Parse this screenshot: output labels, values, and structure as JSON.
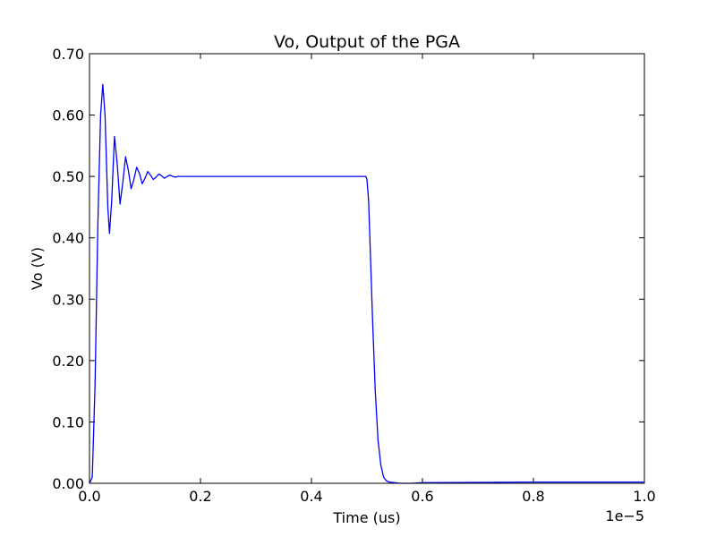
{
  "chart_data": {
    "type": "line",
    "title": "Vo, Output of the PGA",
    "xlabel": "Time (us)",
    "ylabel": "Vo (V)",
    "x_offset_text": "1e−5",
    "xlim": [
      0.0,
      1.0
    ],
    "ylim": [
      0.0,
      0.7
    ],
    "x_ticks": [
      {
        "value": 0.0,
        "label": "0.0"
      },
      {
        "value": 0.2,
        "label": "0.2"
      },
      {
        "value": 0.4,
        "label": "0.4"
      },
      {
        "value": 0.6,
        "label": "0.6"
      },
      {
        "value": 0.8,
        "label": "0.8"
      },
      {
        "value": 1.0,
        "label": "1.0"
      }
    ],
    "y_ticks": [
      {
        "value": 0.0,
        "label": "0.00"
      },
      {
        "value": 0.1,
        "label": "0.10"
      },
      {
        "value": 0.2,
        "label": "0.20"
      },
      {
        "value": 0.3,
        "label": "0.30"
      },
      {
        "value": 0.4,
        "label": "0.40"
      },
      {
        "value": 0.5,
        "label": "0.50"
      },
      {
        "value": 0.6,
        "label": "0.60"
      },
      {
        "value": 0.7,
        "label": "0.70"
      }
    ],
    "grid": false,
    "colors": {
      "series": "#0000ff",
      "axes": "#000000"
    },
    "series": [
      {
        "x": [
          0.0,
          0.005,
          0.01,
          0.015,
          0.02,
          0.024,
          0.028,
          0.033,
          0.036,
          0.04,
          0.045,
          0.05,
          0.055,
          0.06,
          0.065,
          0.07,
          0.075,
          0.08,
          0.085,
          0.09,
          0.095,
          0.1,
          0.105,
          0.11,
          0.115,
          0.12,
          0.125,
          0.13,
          0.135,
          0.14,
          0.145,
          0.15,
          0.155,
          0.16,
          0.17,
          0.18,
          0.2,
          0.3,
          0.4,
          0.498,
          0.5,
          0.503,
          0.506,
          0.51,
          0.515,
          0.52,
          0.525,
          0.53,
          0.535,
          0.54,
          0.55,
          0.56,
          0.58,
          0.6,
          0.8,
          1.0
        ],
        "y": [
          0.0,
          0.01,
          0.16,
          0.42,
          0.6,
          0.65,
          0.6,
          0.45,
          0.407,
          0.46,
          0.565,
          0.52,
          0.455,
          0.49,
          0.532,
          0.51,
          0.48,
          0.495,
          0.515,
          0.505,
          0.488,
          0.497,
          0.508,
          0.502,
          0.495,
          0.499,
          0.504,
          0.501,
          0.497,
          0.5,
          0.502,
          0.5,
          0.499,
          0.5,
          0.5,
          0.5,
          0.5,
          0.5,
          0.5,
          0.5,
          0.495,
          0.46,
          0.38,
          0.27,
          0.15,
          0.07,
          0.03,
          0.01,
          0.004,
          0.002,
          0.001,
          0.0,
          0.0,
          0.001,
          0.002,
          0.002
        ]
      }
    ]
  }
}
